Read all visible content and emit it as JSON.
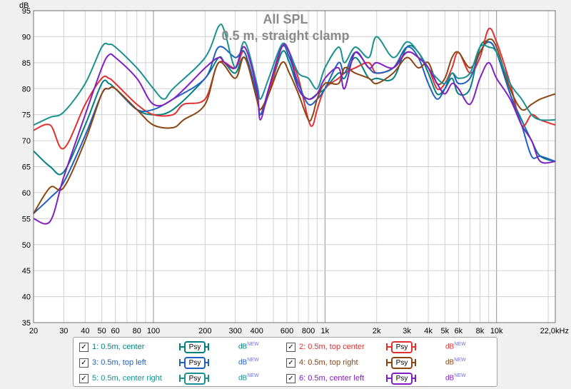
{
  "chart_data": {
    "type": "line",
    "title": "All SPL",
    "subtitle": "0.5 m, straight clamp",
    "ylabel": "dB",
    "x_unit_label": "22,0kHz",
    "x_scale": "log",
    "xlim": [
      20,
      22000
    ],
    "ylim": [
      35,
      95
    ],
    "y_ticks": [
      35,
      40,
      45,
      50,
      55,
      60,
      65,
      70,
      75,
      80,
      85,
      90,
      95
    ],
    "x_ticks": [
      {
        "v": 20,
        "label": "20"
      },
      {
        "v": 30,
        "label": "30"
      },
      {
        "v": 40,
        "label": "40"
      },
      {
        "v": 50,
        "label": "50"
      },
      {
        "v": 60,
        "label": "60"
      },
      {
        "v": 80,
        "label": "80"
      },
      {
        "v": 100,
        "label": "100"
      },
      {
        "v": 200,
        "label": "200"
      },
      {
        "v": 300,
        "label": "300"
      },
      {
        "v": 400,
        "label": "400"
      },
      {
        "v": 600,
        "label": "600"
      },
      {
        "v": 800,
        "label": "800"
      },
      {
        "v": 1000,
        "label": "1k"
      },
      {
        "v": 2000,
        "label": "2k"
      },
      {
        "v": 3000,
        "label": "3k"
      },
      {
        "v": 4000,
        "label": "4k"
      },
      {
        "v": 5000,
        "label": "5k"
      },
      {
        "v": 6000,
        "label": "6k"
      },
      {
        "v": 8000,
        "label": "8k"
      },
      {
        "v": 10000,
        "label": "10k"
      }
    ],
    "grid": true,
    "legend_position": "bottom",
    "series": [
      {
        "name": "1: 0.5m, center",
        "color": "#008080",
        "points": [
          [
            20,
            68
          ],
          [
            25,
            65
          ],
          [
            30,
            64
          ],
          [
            40,
            73
          ],
          [
            50,
            81
          ],
          [
            55,
            81
          ],
          [
            60,
            80
          ],
          [
            80,
            76
          ],
          [
            100,
            75
          ],
          [
            130,
            76
          ],
          [
            200,
            82
          ],
          [
            240,
            86
          ],
          [
            260,
            85
          ],
          [
            300,
            83
          ],
          [
            340,
            86
          ],
          [
            400,
            79
          ],
          [
            420,
            75
          ],
          [
            470,
            79
          ],
          [
            560,
            87
          ],
          [
            620,
            85
          ],
          [
            700,
            80
          ],
          [
            800,
            78
          ],
          [
            900,
            79
          ],
          [
            1000,
            80
          ],
          [
            1200,
            83
          ],
          [
            1300,
            82
          ],
          [
            1500,
            86
          ],
          [
            1800,
            82
          ],
          [
            2000,
            82
          ],
          [
            2500,
            82
          ],
          [
            3000,
            88
          ],
          [
            3500,
            87
          ],
          [
            4000,
            83
          ],
          [
            4500,
            79
          ],
          [
            5000,
            80
          ],
          [
            5500,
            82
          ],
          [
            6000,
            79
          ],
          [
            7000,
            80
          ],
          [
            8000,
            88
          ],
          [
            9000,
            89
          ],
          [
            10000,
            87
          ],
          [
            12000,
            79
          ],
          [
            14000,
            74
          ],
          [
            16000,
            70
          ],
          [
            18000,
            67
          ],
          [
            22000,
            66
          ]
        ]
      },
      {
        "name": "2: 0.5m, top center",
        "color": "#e03030",
        "points": [
          [
            20,
            72
          ],
          [
            25,
            73
          ],
          [
            30,
            68.5
          ],
          [
            40,
            77
          ],
          [
            50,
            82
          ],
          [
            55,
            82
          ],
          [
            60,
            81
          ],
          [
            80,
            77
          ],
          [
            100,
            75
          ],
          [
            130,
            75
          ],
          [
            150,
            77
          ],
          [
            200,
            78
          ],
          [
            240,
            85
          ],
          [
            300,
            84
          ],
          [
            340,
            87
          ],
          [
            400,
            78
          ],
          [
            420,
            76
          ],
          [
            470,
            79
          ],
          [
            560,
            88
          ],
          [
            620,
            86
          ],
          [
            700,
            82
          ],
          [
            800,
            74
          ],
          [
            850,
            73
          ],
          [
            900,
            76
          ],
          [
            1000,
            80
          ],
          [
            1200,
            82
          ],
          [
            1300,
            83
          ],
          [
            1500,
            84
          ],
          [
            1800,
            85
          ],
          [
            2000,
            83
          ],
          [
            2500,
            84
          ],
          [
            3000,
            87
          ],
          [
            3500,
            86
          ],
          [
            4000,
            84
          ],
          [
            4500,
            80
          ],
          [
            5000,
            81
          ],
          [
            5500,
            84
          ],
          [
            6000,
            87
          ],
          [
            7000,
            83
          ],
          [
            8000,
            86
          ],
          [
            9000,
            91.5
          ],
          [
            10000,
            89
          ],
          [
            12000,
            81
          ],
          [
            14000,
            73
          ],
          [
            16000,
            75
          ],
          [
            18000,
            74
          ],
          [
            22000,
            73
          ]
        ]
      },
      {
        "name": "3: 0.5m, top left",
        "color": "#2060c0",
        "points": [
          [
            20,
            56
          ],
          [
            25,
            59
          ],
          [
            30,
            62
          ],
          [
            40,
            71
          ],
          [
            50,
            79
          ],
          [
            55,
            80
          ],
          [
            60,
            80
          ],
          [
            80,
            76
          ],
          [
            100,
            76
          ],
          [
            130,
            78
          ],
          [
            200,
            82
          ],
          [
            240,
            88
          ],
          [
            300,
            86
          ],
          [
            340,
            87
          ],
          [
            400,
            79
          ],
          [
            420,
            75
          ],
          [
            470,
            80
          ],
          [
            560,
            88
          ],
          [
            620,
            86
          ],
          [
            700,
            81
          ],
          [
            800,
            77
          ],
          [
            900,
            78
          ],
          [
            1000,
            80
          ],
          [
            1200,
            85
          ],
          [
            1300,
            83
          ],
          [
            1500,
            87
          ],
          [
            1800,
            84
          ],
          [
            2000,
            83
          ],
          [
            2500,
            84
          ],
          [
            3000,
            88
          ],
          [
            3500,
            86
          ],
          [
            4000,
            81
          ],
          [
            4500,
            78
          ],
          [
            5000,
            80
          ],
          [
            5500,
            83
          ],
          [
            6000,
            81
          ],
          [
            7000,
            82
          ],
          [
            8000,
            87
          ],
          [
            9000,
            89
          ],
          [
            10000,
            87
          ],
          [
            12000,
            79
          ],
          [
            14000,
            73
          ],
          [
            16000,
            67
          ],
          [
            18000,
            67
          ],
          [
            22000,
            66
          ]
        ]
      },
      {
        "name": "4: 0.5m, top right",
        "color": "#8b4513",
        "points": [
          [
            20,
            56
          ],
          [
            25,
            61
          ],
          [
            30,
            61
          ],
          [
            40,
            70
          ],
          [
            50,
            79
          ],
          [
            55,
            80
          ],
          [
            60,
            80
          ],
          [
            80,
            76
          ],
          [
            100,
            73
          ],
          [
            130,
            72.5
          ],
          [
            150,
            74
          ],
          [
            200,
            77
          ],
          [
            240,
            85
          ],
          [
            300,
            82
          ],
          [
            340,
            86
          ],
          [
            400,
            78
          ],
          [
            420,
            76
          ],
          [
            470,
            79
          ],
          [
            560,
            85
          ],
          [
            620,
            83
          ],
          [
            700,
            79
          ],
          [
            800,
            74
          ],
          [
            850,
            75
          ],
          [
            900,
            78
          ],
          [
            1000,
            81
          ],
          [
            1200,
            81
          ],
          [
            1300,
            84
          ],
          [
            1500,
            83
          ],
          [
            1800,
            82
          ],
          [
            2000,
            81
          ],
          [
            2500,
            83
          ],
          [
            3000,
            86
          ],
          [
            3500,
            84
          ],
          [
            4000,
            85
          ],
          [
            4500,
            81
          ],
          [
            5000,
            82
          ],
          [
            5500,
            86
          ],
          [
            6000,
            87
          ],
          [
            7000,
            84
          ],
          [
            8000,
            87
          ],
          [
            9000,
            89.5
          ],
          [
            10000,
            88
          ],
          [
            12000,
            80
          ],
          [
            14000,
            76
          ],
          [
            16000,
            77
          ],
          [
            18000,
            78
          ],
          [
            22000,
            79
          ]
        ]
      },
      {
        "name": "5: 0.5m, center right",
        "color": "#1a9090",
        "points": [
          [
            20,
            73
          ],
          [
            25,
            74.5
          ],
          [
            30,
            75.5
          ],
          [
            40,
            81
          ],
          [
            50,
            88
          ],
          [
            55,
            88.5
          ],
          [
            60,
            88
          ],
          [
            80,
            84
          ],
          [
            100,
            80
          ],
          [
            115,
            78
          ],
          [
            130,
            80
          ],
          [
            200,
            86
          ],
          [
            240,
            92
          ],
          [
            260,
            91
          ],
          [
            300,
            84
          ],
          [
            340,
            89
          ],
          [
            400,
            81
          ],
          [
            420,
            78
          ],
          [
            470,
            82
          ],
          [
            560,
            88.5
          ],
          [
            620,
            87
          ],
          [
            700,
            83
          ],
          [
            800,
            82
          ],
          [
            900,
            80
          ],
          [
            1000,
            84
          ],
          [
            1200,
            88
          ],
          [
            1300,
            85
          ],
          [
            1500,
            88
          ],
          [
            1800,
            86
          ],
          [
            2000,
            90
          ],
          [
            2500,
            86
          ],
          [
            3000,
            89
          ],
          [
            3500,
            87
          ],
          [
            4000,
            84
          ],
          [
            4500,
            82
          ],
          [
            5000,
            81
          ],
          [
            5500,
            83
          ],
          [
            6000,
            82
          ],
          [
            7000,
            83
          ],
          [
            8000,
            88
          ],
          [
            9000,
            88
          ],
          [
            10000,
            87
          ],
          [
            12000,
            81
          ],
          [
            14000,
            78
          ],
          [
            16000,
            75
          ],
          [
            18000,
            74
          ],
          [
            22000,
            74
          ]
        ]
      },
      {
        "name": "6: 0.5m, center left",
        "color": "#8020c0",
        "points": [
          [
            20,
            55
          ],
          [
            25,
            54.5
          ],
          [
            30,
            63
          ],
          [
            40,
            75
          ],
          [
            50,
            84
          ],
          [
            55,
            86.5
          ],
          [
            60,
            86
          ],
          [
            80,
            82
          ],
          [
            100,
            77
          ],
          [
            130,
            78
          ],
          [
            200,
            84
          ],
          [
            240,
            86
          ],
          [
            260,
            85
          ],
          [
            300,
            84
          ],
          [
            340,
            88
          ],
          [
            400,
            80
          ],
          [
            420,
            74
          ],
          [
            470,
            80
          ],
          [
            560,
            88
          ],
          [
            620,
            87
          ],
          [
            700,
            80
          ],
          [
            800,
            78
          ],
          [
            900,
            79
          ],
          [
            1000,
            82
          ],
          [
            1200,
            84
          ],
          [
            1300,
            80
          ],
          [
            1500,
            87
          ],
          [
            1800,
            84
          ],
          [
            2000,
            85
          ],
          [
            2500,
            84
          ],
          [
            3000,
            87
          ],
          [
            3500,
            86
          ],
          [
            4000,
            84
          ],
          [
            4500,
            81
          ],
          [
            5000,
            79
          ],
          [
            5500,
            81
          ],
          [
            6000,
            80
          ],
          [
            7000,
            77
          ],
          [
            8000,
            82
          ],
          [
            9000,
            85
          ],
          [
            10000,
            82
          ],
          [
            12000,
            78
          ],
          [
            14000,
            73
          ],
          [
            16000,
            70
          ],
          [
            18000,
            66
          ],
          [
            22000,
            66
          ]
        ]
      }
    ]
  },
  "legend": {
    "psy_label": "Psy",
    "db_label": "dB",
    "db_sup": "NEW",
    "check_mark": "✓",
    "entries": [
      {
        "label": "1: 0.5m, center",
        "color": "#008080"
      },
      {
        "label": "2: 0.5m, top center",
        "color": "#e03030"
      },
      {
        "label": "3: 0.5m, top left",
        "color": "#2060c0"
      },
      {
        "label": "4: 0.5m, top right",
        "color": "#8b4513"
      },
      {
        "label": "5: 0.5m, center right",
        "color": "#1a9090"
      },
      {
        "label": "6: 0.5m, center left",
        "color": "#8020c0"
      }
    ]
  }
}
